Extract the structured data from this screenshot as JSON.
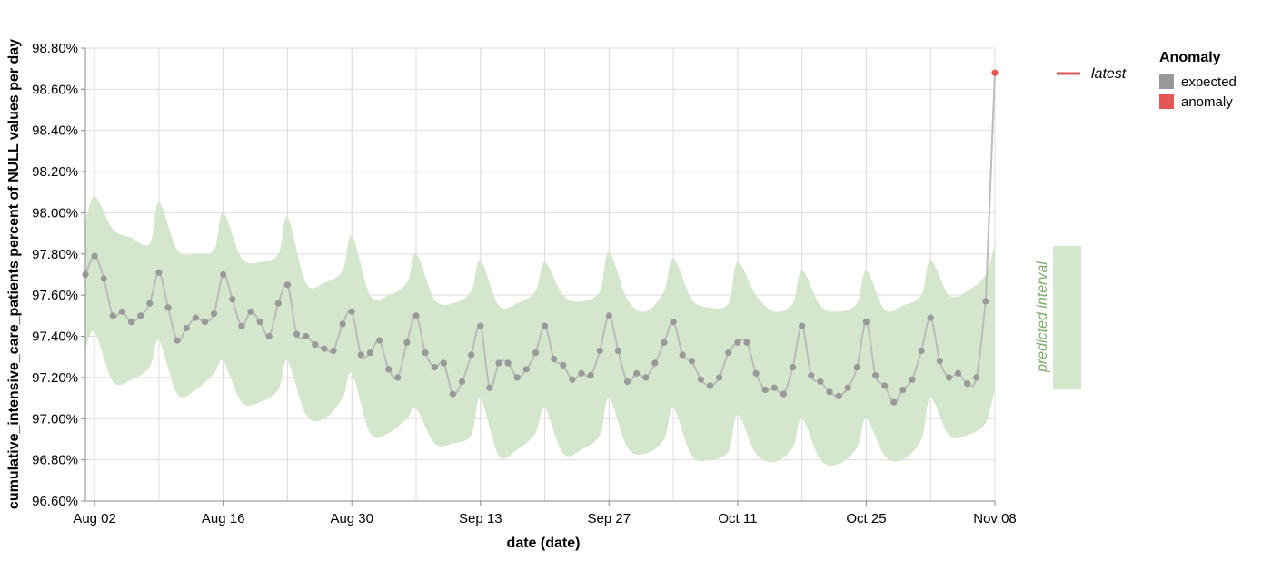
{
  "chart_data": {
    "type": "line",
    "title": "",
    "xlabel": "date (date)",
    "ylabel": "cumulative_intensive_care_patients percent of NULL values per day",
    "ylim": [
      96.6,
      98.8
    ],
    "y_ticks": [
      "96.60%",
      "96.80%",
      "97.00%",
      "97.20%",
      "97.40%",
      "97.60%",
      "97.80%",
      "98.00%",
      "98.20%",
      "98.40%",
      "98.60%",
      "98.80%"
    ],
    "x_ticks": [
      "Aug 02",
      "Aug 16",
      "Aug 30",
      "Sep 13",
      "Sep 27",
      "Oct 11",
      "Oct 25",
      "Nov 08"
    ],
    "x_tick_dates": [
      "2021-08-02",
      "2021-08-16",
      "2021-08-30",
      "2021-09-13",
      "2021-09-27",
      "2021-10-11",
      "2021-10-25",
      "2021-11-08"
    ],
    "x_range": [
      "2021-08-01",
      "2021-11-08"
    ],
    "grid": true,
    "legend_placement": "right",
    "colors": {
      "expected": "#999999",
      "anomaly": "#e45756",
      "band": "#d4e6cc",
      "line": "#bbbbbb"
    },
    "legend": {
      "latest_label": "latest",
      "anomaly_title": "Anomaly",
      "expected_label": "expected",
      "anomaly_label": "anomaly",
      "band_label": "predicted interval"
    },
    "series": [
      {
        "name": "expected",
        "x": [
          "2021-08-01",
          "2021-08-02",
          "2021-08-03",
          "2021-08-04",
          "2021-08-05",
          "2021-08-06",
          "2021-08-07",
          "2021-08-08",
          "2021-08-09",
          "2021-08-10",
          "2021-08-11",
          "2021-08-12",
          "2021-08-13",
          "2021-08-14",
          "2021-08-15",
          "2021-08-16",
          "2021-08-17",
          "2021-08-18",
          "2021-08-19",
          "2021-08-20",
          "2021-08-21",
          "2021-08-22",
          "2021-08-23",
          "2021-08-24",
          "2021-08-25",
          "2021-08-26",
          "2021-08-27",
          "2021-08-28",
          "2021-08-29",
          "2021-08-30",
          "2021-08-31",
          "2021-09-01",
          "2021-09-02",
          "2021-09-03",
          "2021-09-04",
          "2021-09-05",
          "2021-09-06",
          "2021-09-07",
          "2021-09-08",
          "2021-09-09",
          "2021-09-10",
          "2021-09-11",
          "2021-09-12",
          "2021-09-13",
          "2021-09-14",
          "2021-09-15",
          "2021-09-16",
          "2021-09-17",
          "2021-09-18",
          "2021-09-19",
          "2021-09-20",
          "2021-09-21",
          "2021-09-22",
          "2021-09-23",
          "2021-09-24",
          "2021-09-25",
          "2021-09-26",
          "2021-09-27",
          "2021-09-28",
          "2021-09-29",
          "2021-09-30",
          "2021-10-01",
          "2021-10-02",
          "2021-10-03",
          "2021-10-04",
          "2021-10-05",
          "2021-10-06",
          "2021-10-07",
          "2021-10-08",
          "2021-10-09",
          "2021-10-10",
          "2021-10-11",
          "2021-10-12",
          "2021-10-13",
          "2021-10-14",
          "2021-10-15",
          "2021-10-16",
          "2021-10-17",
          "2021-10-18",
          "2021-10-19",
          "2021-10-20",
          "2021-10-21",
          "2021-10-22",
          "2021-10-23",
          "2021-10-24",
          "2021-10-25",
          "2021-10-26",
          "2021-10-27",
          "2021-10-28",
          "2021-10-29",
          "2021-10-30",
          "2021-10-31",
          "2021-11-01",
          "2021-11-02",
          "2021-11-03",
          "2021-11-04",
          "2021-11-05",
          "2021-11-06",
          "2021-11-07"
        ],
        "y": [
          97.7,
          97.79,
          97.68,
          97.5,
          97.52,
          97.47,
          97.5,
          97.56,
          97.71,
          97.54,
          97.38,
          97.44,
          97.49,
          97.47,
          97.51,
          97.7,
          97.58,
          97.45,
          97.52,
          97.47,
          97.4,
          97.56,
          97.65,
          97.41,
          97.4,
          97.36,
          97.34,
          97.33,
          97.46,
          97.52,
          97.31,
          97.32,
          97.38,
          97.24,
          97.2,
          97.37,
          97.5,
          97.32,
          97.25,
          97.27,
          97.12,
          97.18,
          97.31,
          97.45,
          97.15,
          97.27,
          97.27,
          97.2,
          97.24,
          97.32,
          97.45,
          97.29,
          97.26,
          97.19,
          97.22,
          97.21,
          97.33,
          97.5,
          97.33,
          97.18,
          97.22,
          97.2,
          97.27,
          97.37,
          97.47,
          97.31,
          97.28,
          97.19,
          97.16,
          97.2,
          97.32,
          97.37,
          97.37,
          97.22,
          97.14,
          97.15,
          97.12,
          97.25,
          97.45,
          97.21,
          97.18,
          97.13,
          97.11,
          97.15,
          97.25,
          97.47,
          97.21,
          97.16,
          97.08,
          97.14,
          97.19,
          97.33,
          97.49,
          97.28,
          97.2,
          97.22,
          97.17,
          97.2,
          97.57
        ]
      },
      {
        "name": "anomaly",
        "x": [
          "2021-11-08"
        ],
        "y": [
          98.68
        ]
      }
    ],
    "interval": {
      "x": [
        "2021-08-01",
        "2021-08-02",
        "2021-08-04",
        "2021-08-06",
        "2021-08-08",
        "2021-08-09",
        "2021-08-11",
        "2021-08-13",
        "2021-08-15",
        "2021-08-16",
        "2021-08-18",
        "2021-08-20",
        "2021-08-22",
        "2021-08-23",
        "2021-08-25",
        "2021-08-27",
        "2021-08-29",
        "2021-08-30",
        "2021-09-01",
        "2021-09-03",
        "2021-09-05",
        "2021-09-06",
        "2021-09-08",
        "2021-09-10",
        "2021-09-12",
        "2021-09-13",
        "2021-09-15",
        "2021-09-17",
        "2021-09-19",
        "2021-09-20",
        "2021-09-22",
        "2021-09-24",
        "2021-09-26",
        "2021-09-27",
        "2021-09-29",
        "2021-10-01",
        "2021-10-03",
        "2021-10-04",
        "2021-10-06",
        "2021-10-08",
        "2021-10-10",
        "2021-10-11",
        "2021-10-13",
        "2021-10-15",
        "2021-10-17",
        "2021-10-18",
        "2021-10-20",
        "2021-10-22",
        "2021-10-24",
        "2021-10-25",
        "2021-10-27",
        "2021-10-29",
        "2021-10-31",
        "2021-11-01",
        "2021-11-03",
        "2021-11-05",
        "2021-11-07",
        "2021-11-08"
      ],
      "upper": [
        97.95,
        98.08,
        97.92,
        97.88,
        97.85,
        98.05,
        97.82,
        97.8,
        97.82,
        98.0,
        97.78,
        97.76,
        97.8,
        97.98,
        97.66,
        97.66,
        97.72,
        97.89,
        97.6,
        97.6,
        97.66,
        97.8,
        97.58,
        97.56,
        97.62,
        97.77,
        97.55,
        97.56,
        97.62,
        97.76,
        97.6,
        97.57,
        97.62,
        97.81,
        97.58,
        97.52,
        97.62,
        97.78,
        97.58,
        97.54,
        97.56,
        97.76,
        97.6,
        97.52,
        97.56,
        97.72,
        97.55,
        97.52,
        97.56,
        97.72,
        97.53,
        97.55,
        97.6,
        97.77,
        97.6,
        97.62,
        97.7,
        97.85
      ],
      "lower": [
        97.34,
        97.42,
        97.18,
        97.19,
        97.25,
        97.38,
        97.12,
        97.14,
        97.22,
        97.28,
        97.08,
        97.08,
        97.14,
        97.28,
        97.02,
        97.0,
        97.1,
        97.22,
        96.93,
        96.93,
        97.0,
        97.05,
        96.88,
        96.88,
        96.92,
        97.1,
        96.82,
        96.85,
        96.93,
        97.05,
        96.83,
        96.85,
        96.92,
        97.1,
        96.86,
        96.83,
        96.9,
        97.05,
        96.82,
        96.8,
        96.84,
        97.02,
        96.83,
        96.79,
        96.86,
        97.0,
        96.8,
        96.78,
        96.86,
        97.0,
        96.82,
        96.8,
        96.9,
        97.1,
        96.92,
        96.92,
        96.98,
        97.15
      ]
    }
  }
}
